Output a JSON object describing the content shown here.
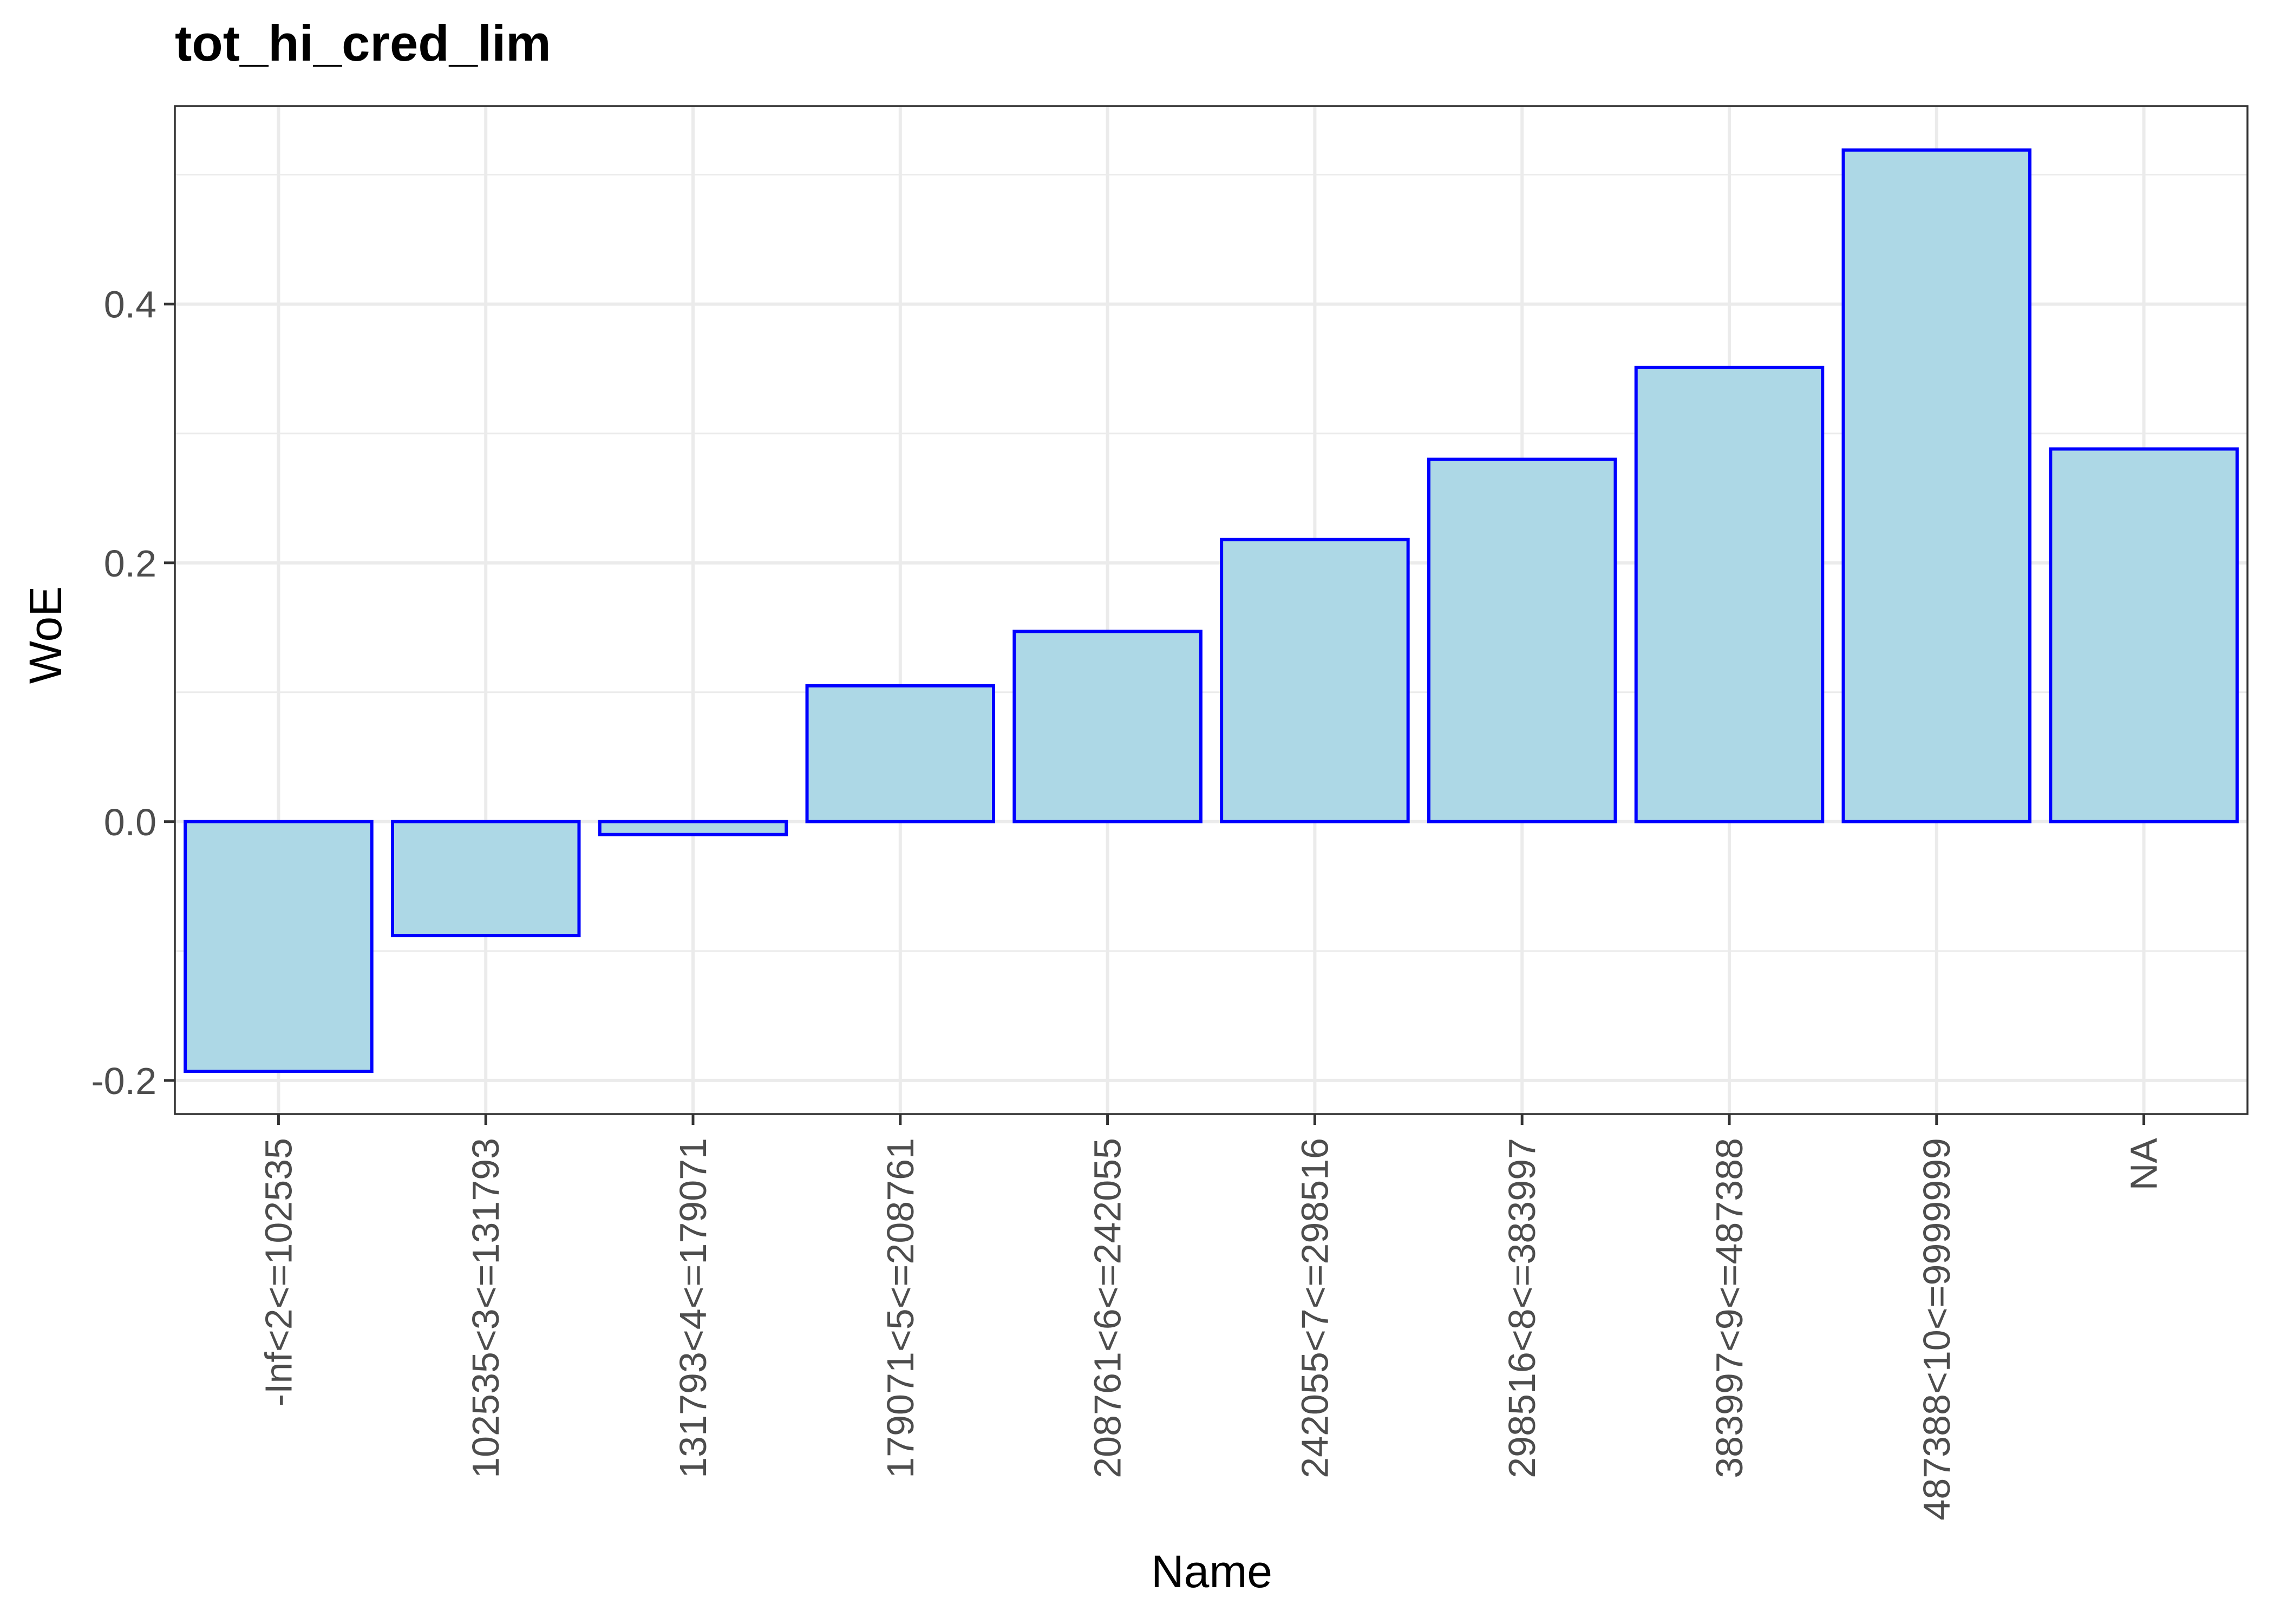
{
  "chart_data": {
    "type": "bar",
    "title": "tot_hi_cred_lim",
    "xlabel": "Name",
    "ylabel": "WoE",
    "categories": [
      "-Inf<2<=102535",
      "102535<3<=131793",
      "131793<4<=179071",
      "179071<5<=208761",
      "208761<6<=242055",
      "242055<7<=298516",
      "298516<8<=383997",
      "383997<9<=487388",
      "487388<10<=9999999",
      "NA"
    ],
    "values": [
      -0.193,
      -0.088,
      -0.01,
      0.105,
      0.147,
      0.218,
      0.28,
      0.351,
      0.519,
      0.288
    ],
    "ylim": [
      -0.226,
      0.553
    ],
    "yticks": [
      -0.2,
      0.0,
      0.2,
      0.4
    ],
    "ytick_labels": [
      "-0.2",
      "0.0",
      "0.2",
      "0.4"
    ],
    "grid": true,
    "colors": {
      "fill": "#add8e6",
      "outline": "#0000ff",
      "grid": "#ebebeb",
      "panel_border": "#333333"
    }
  }
}
